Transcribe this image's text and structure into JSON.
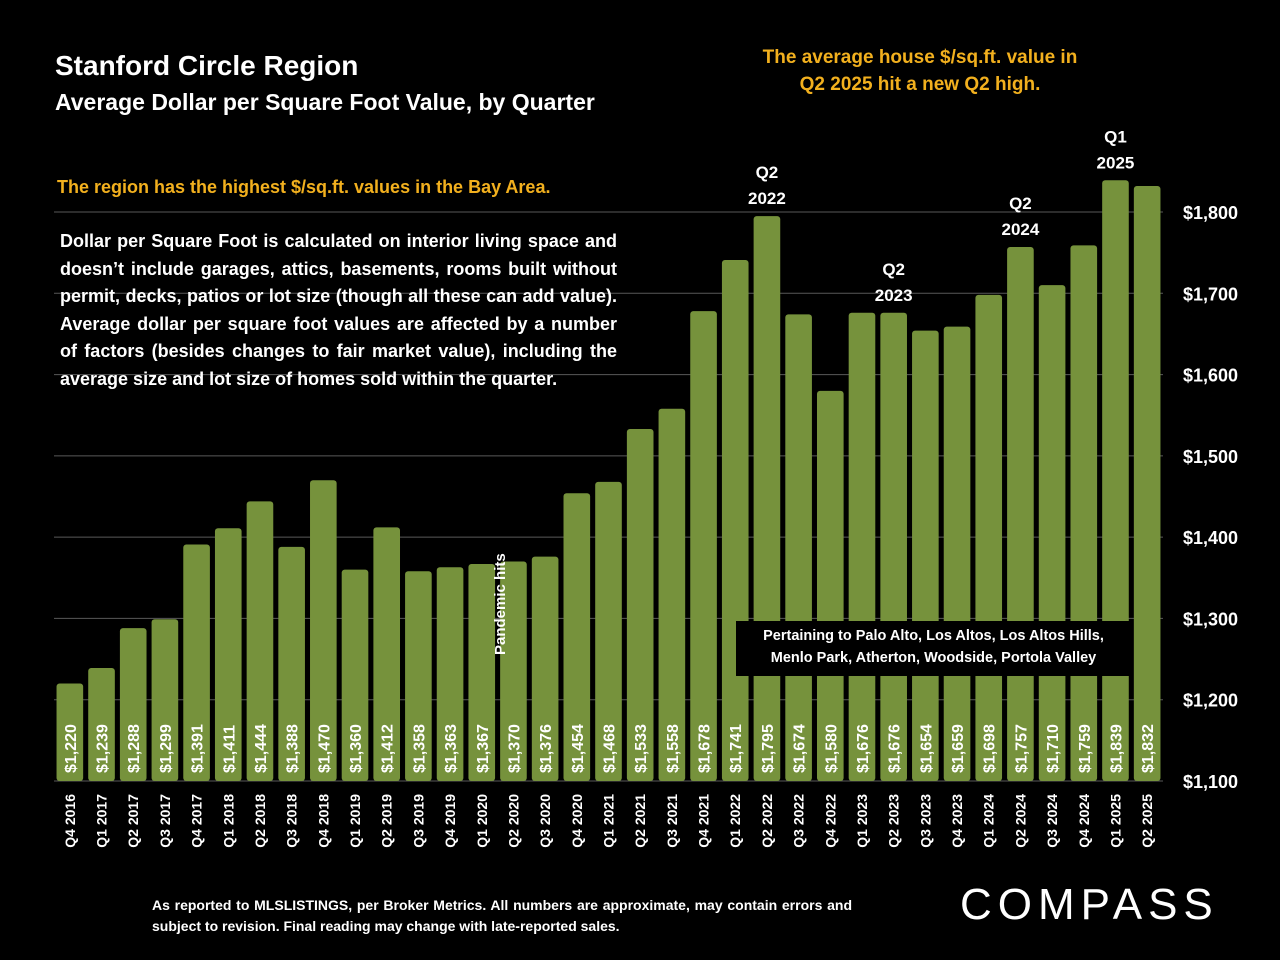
{
  "header": {
    "title": "Stanford Circle Region",
    "subtitle": "Average Dollar per Square Foot Value, by Quarter"
  },
  "callouts": {
    "top_line1": "The average house $/sq.ft. value in",
    "top_line2": "Q2 2025 hit a new Q2 high.",
    "region_note": "The region has the highest $/sq.ft. values in the Bay Area.",
    "description": "Dollar per Square Foot is calculated on interior living space and doesn’t include garages, attics, basements, rooms built without permit, decks, patios or lot size (though all these can add value). Average dollar per square foot values are affected by a number of factors (besides changes to fair market value), including the average size and lot size of homes sold within the quarter.",
    "pertaining_line1": "Pertaining to Palo Alto, Los Altos, Los Altos Hills,",
    "pertaining_line2": "Menlo Park, Atherton, Woodside, Portola Valley",
    "pandemic": "Pandemic hits"
  },
  "footer": {
    "footnote": "As reported to MLSLISTINGS, per Broker Metrics. All numbers are approximate, may contain errors and subject to revision. Final reading may change with late-reported sales.",
    "logo": "COMPASS"
  },
  "colors": {
    "bar": "#76923c",
    "accent": "#f2b01e",
    "background": "#000000",
    "text": "#ffffff"
  },
  "chart_data": {
    "type": "bar",
    "categories": [
      "Q4 2016",
      "Q1 2017",
      "Q2 2017",
      "Q3 2017",
      "Q4 2017",
      "Q1 2018",
      "Q2 2018",
      "Q3 2018",
      "Q4 2018",
      "Q1 2019",
      "Q2 2019",
      "Q3 2019",
      "Q4 2019",
      "Q1 2020",
      "Q2 2020",
      "Q3 2020",
      "Q4 2020",
      "Q1 2021",
      "Q2 2021",
      "Q3 2021",
      "Q4 2021",
      "Q1 2022",
      "Q2 2022",
      "Q3 2022",
      "Q4 2022",
      "Q1 2023",
      "Q2 2023",
      "Q3 2023",
      "Q4 2023",
      "Q1 2024",
      "Q2 2024",
      "Q3 2024",
      "Q4 2024",
      "Q1 2025",
      "Q2 2025"
    ],
    "values": [
      1220,
      1239,
      1288,
      1299,
      1391,
      1411,
      1444,
      1388,
      1470,
      1360,
      1412,
      1358,
      1363,
      1367,
      1370,
      1376,
      1454,
      1468,
      1533,
      1558,
      1678,
      1741,
      1795,
      1674,
      1580,
      1676,
      1676,
      1654,
      1659,
      1698,
      1757,
      1710,
      1759,
      1839,
      1832
    ],
    "value_labels": [
      "$1,220",
      "$1,239",
      "$1,288",
      "$1,299",
      "$1,391",
      "$1,411",
      "$1,444",
      "$1,388",
      "$1,470",
      "$1,360",
      "$1,412",
      "$1,358",
      "$1,363",
      "$1,367",
      "$1,370",
      "$1,376",
      "$1,454",
      "$1,468",
      "$1,533",
      "$1,558",
      "$1,678",
      "$1,741",
      "$1,795",
      "$1,674",
      "$1,580",
      "$1,676",
      "$1,676",
      "$1,654",
      "$1,659",
      "$1,698",
      "$1,757",
      "$1,710",
      "$1,759",
      "$1,839",
      "$1,832"
    ],
    "ylim": [
      1100,
      1800
    ],
    "yticks": [
      "$1,100",
      "$1,200",
      "$1,300",
      "$1,400",
      "$1,500",
      "$1,600",
      "$1,700",
      "$1,800"
    ],
    "ytick_values": [
      1100,
      1200,
      1300,
      1400,
      1500,
      1600,
      1700,
      1800
    ],
    "grid": true,
    "annotations": [
      {
        "index": 22,
        "line1": "Q2",
        "line2": "2022"
      },
      {
        "index": 26,
        "line1": "Q2",
        "line2": "2023"
      },
      {
        "index": 30,
        "line1": "Q2",
        "line2": "2024"
      },
      {
        "index": 33,
        "line1": "Q1",
        "line2": "2025"
      }
    ]
  }
}
